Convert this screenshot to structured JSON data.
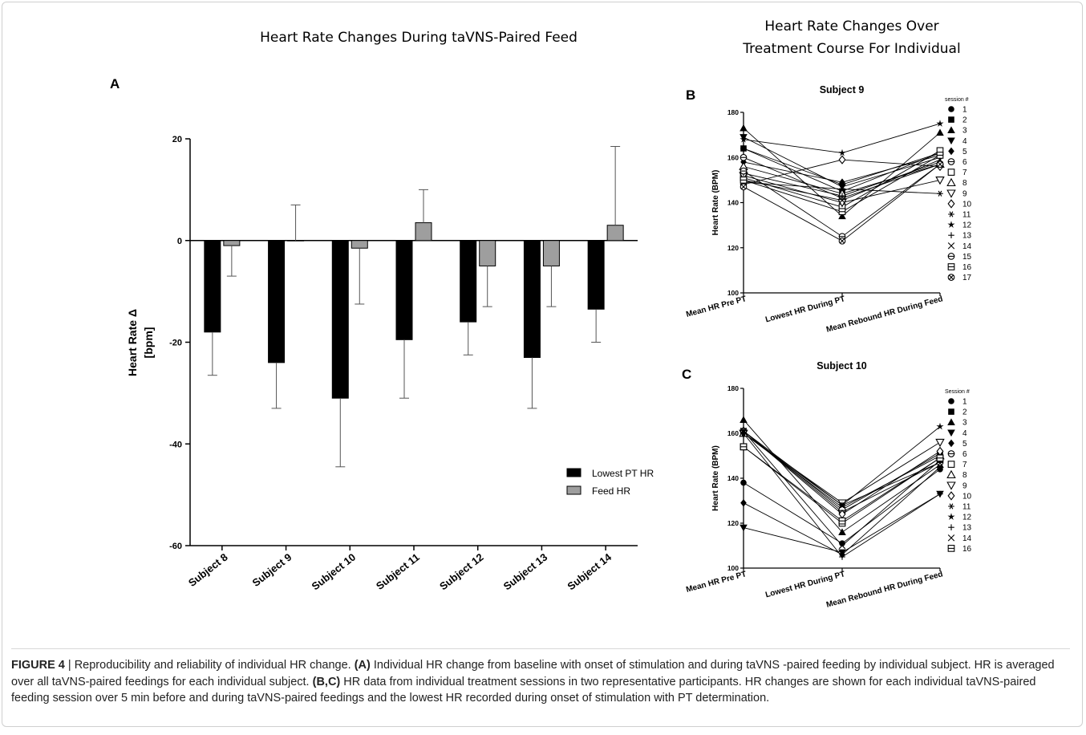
{
  "heading_left": "Heart Rate Changes During taVNS-Paired Feed",
  "heading_right_1": "Heart Rate Changes Over",
  "heading_right_2": "Treatment Course For Individual",
  "panel_labels": {
    "a": "A",
    "b": "B",
    "c": "C"
  },
  "caption": {
    "figure_label": "FIGURE 4",
    "separator": " | ",
    "lead": "Reproducibility and reliability of individual HR change. ",
    "tag_a": "(A)",
    "text_a": " Individual HR change from baseline with onset of stimulation and during taVNS -paired feeding by individual subject. HR is averaged over all taVNS-paired feedings for each individual subject. ",
    "tag_bc": "(B,C)",
    "text_bc": " HR data from individual treatment sessions in two representative participants. HR changes are shown for each individual taVNS-paired feeding session over 5 min before and during taVNS-paired feedings and the lowest HR recorded during onset of stimulation with PT determination."
  },
  "chart_data": [
    {
      "type": "bar",
      "panel": "A",
      "title": "Heart Rate Changes During taVNS-Paired Feed",
      "ylabel_line1": "Heart Rate Δ",
      "ylabel_line2": "[bpm]",
      "xlabel": "",
      "ylim": [
        -60,
        20
      ],
      "yticks": [
        20,
        0,
        -20,
        -40,
        -60
      ],
      "categories": [
        "Subject 8",
        "Subject 9",
        "Subject 10",
        "Subject 11",
        "Subject 12",
        "Subject 13",
        "Subject 14"
      ],
      "series": [
        {
          "name": "Lowest PT HR",
          "color": "#000000",
          "values": [
            -18,
            -24,
            -31,
            -19.5,
            -16,
            -23,
            -13.5
          ],
          "errors": [
            8.5,
            9,
            13.5,
            11.5,
            6.5,
            10,
            6.5
          ],
          "error_direction": "down"
        },
        {
          "name": "Feed HR",
          "color": "#9e9e9e",
          "values": [
            -1,
            0,
            -1.5,
            3.5,
            -5,
            -5,
            3
          ],
          "errors": [
            6,
            7,
            11,
            6.5,
            8,
            8,
            15.5
          ],
          "error_direction": "away"
        }
      ],
      "legend_position": "bottom-right",
      "grid": false
    },
    {
      "type": "line",
      "panel": "B",
      "title": "Subject 9",
      "ylabel": "Heart Rate (BPM)",
      "ylim": [
        100,
        180
      ],
      "yticks": [
        180,
        160,
        140,
        120,
        100
      ],
      "categories": [
        "Mean HR Pre PT",
        "Lowest HR During PT",
        "Mean Rebound HR During Feed"
      ],
      "legend_title": "session #",
      "series": [
        {
          "name": "1",
          "marker": "circle-filled",
          "values": [
            164,
            148,
            162
          ]
        },
        {
          "name": "2",
          "marker": "square-filled",
          "values": [
            164,
            145,
            162
          ]
        },
        {
          "name": "3",
          "marker": "triangle-up-filled",
          "values": [
            173,
            134,
            171
          ]
        },
        {
          "name": "4",
          "marker": "triangle-down-filled",
          "values": [
            169,
            147,
            160
          ]
        },
        {
          "name": "5",
          "marker": "diamond-filled",
          "values": [
            158,
            149,
            161
          ]
        },
        {
          "name": "6",
          "marker": "circle-minus",
          "values": [
            160,
            142,
            157
          ]
        },
        {
          "name": "7",
          "marker": "square-open",
          "values": [
            151,
            138,
            163
          ]
        },
        {
          "name": "8",
          "marker": "triangle-up-open",
          "values": [
            156,
            144,
            157
          ]
        },
        {
          "name": "9",
          "marker": "triangle-down-open",
          "values": [
            152,
            140,
            150
          ]
        },
        {
          "name": "10",
          "marker": "diamond-open",
          "values": [
            148,
            159,
            156
          ]
        },
        {
          "name": "11",
          "marker": "asterisk",
          "values": [
            149,
            146,
            144
          ]
        },
        {
          "name": "12",
          "marker": "star-filled",
          "values": [
            168,
            162,
            175
          ]
        },
        {
          "name": "13",
          "marker": "plus",
          "values": [
            153,
            143,
            158
          ]
        },
        {
          "name": "14",
          "marker": "x",
          "values": [
            150,
            141,
            159
          ]
        },
        {
          "name": "15",
          "marker": "circle-minus",
          "values": [
            154,
            125,
            157
          ]
        },
        {
          "name": "16",
          "marker": "square-minus",
          "values": [
            150,
            136,
            161
          ]
        },
        {
          "name": "17",
          "marker": "circle-x",
          "values": [
            147,
            123,
            157
          ]
        }
      ]
    },
    {
      "type": "line",
      "panel": "C",
      "title": "Subject 10",
      "ylabel": "Heart Rate (BPM)",
      "ylim": [
        100,
        180
      ],
      "yticks": [
        180,
        160,
        140,
        120,
        100
      ],
      "categories": [
        "Mean HR Pre PT",
        "Lowest HR During PT",
        "Mean Rebound HR During Feed"
      ],
      "legend_title": "Session #",
      "series": [
        {
          "name": "1",
          "marker": "circle-filled",
          "values": [
            138,
            111,
            144
          ]
        },
        {
          "name": "2",
          "marker": "square-filled",
          "values": [
            161,
            126,
            151
          ]
        },
        {
          "name": "3",
          "marker": "triangle-up-filled",
          "values": [
            166,
            116,
            146
          ]
        },
        {
          "name": "4",
          "marker": "triangle-down-filled",
          "values": [
            118,
            107,
            133
          ]
        },
        {
          "name": "5",
          "marker": "diamond-filled",
          "values": [
            129,
            106,
            145
          ]
        },
        {
          "name": "6",
          "marker": "circle-minus",
          "values": [
            161,
            125,
            147
          ]
        },
        {
          "name": "7",
          "marker": "square-open",
          "values": [
            154,
            120,
            149
          ]
        },
        {
          "name": "8",
          "marker": "triangle-up-open",
          "values": [
            160,
            127,
            150
          ]
        },
        {
          "name": "9",
          "marker": "triangle-down-open",
          "values": [
            160,
            129,
            156
          ]
        },
        {
          "name": "10",
          "marker": "diamond-open",
          "values": [
            161,
            124,
            152
          ]
        },
        {
          "name": "11",
          "marker": "asterisk",
          "values": [
            160,
            128,
            147
          ]
        },
        {
          "name": "12",
          "marker": "star-filled",
          "values": [
            161,
            128,
            163
          ]
        },
        {
          "name": "13",
          "marker": "plus",
          "values": [
            160,
            105,
            133
          ]
        },
        {
          "name": "14",
          "marker": "x",
          "values": [
            161,
            110,
            148
          ]
        },
        {
          "name": "16",
          "marker": "square-minus",
          "values": [
            154,
            121,
            149
          ]
        }
      ]
    }
  ]
}
